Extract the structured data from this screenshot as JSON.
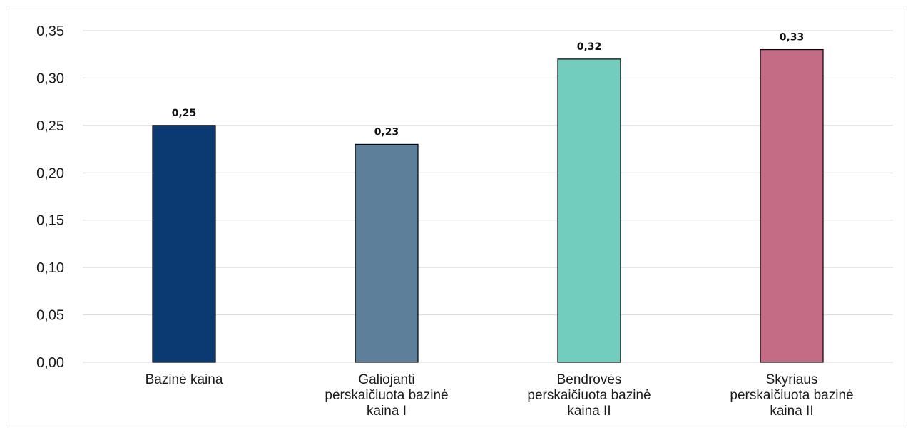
{
  "chart_data": {
    "type": "bar",
    "title": "",
    "xlabel": "",
    "ylabel": "",
    "ylim": [
      0,
      0.35
    ],
    "yticks": [
      0,
      0.05,
      0.1,
      0.15,
      0.2,
      0.25,
      0.3,
      0.35
    ],
    "ytick_labels": [
      "0,00",
      "0,05",
      "0,10",
      "0,15",
      "0,20",
      "0,25",
      "0,30",
      "0,35"
    ],
    "grid": true,
    "legend": "none",
    "categories": [
      [
        "Bazinė kaina"
      ],
      [
        "Galiojanti",
        "perskaičiuota bazinė",
        "kaina I"
      ],
      [
        "Bendrovės",
        "perskaičiuota bazinė",
        "kaina II"
      ],
      [
        "Skyriaus",
        "perskaičiuota bazinė",
        "kaina II"
      ]
    ],
    "values": [
      0.25,
      0.23,
      0.32,
      0.33
    ],
    "data_labels": [
      "0,25",
      "0,23",
      "0,32",
      "0,33"
    ],
    "colors": [
      "#0b3a73",
      "#5e7f9a",
      "#72cdbf",
      "#c46b86"
    ]
  }
}
